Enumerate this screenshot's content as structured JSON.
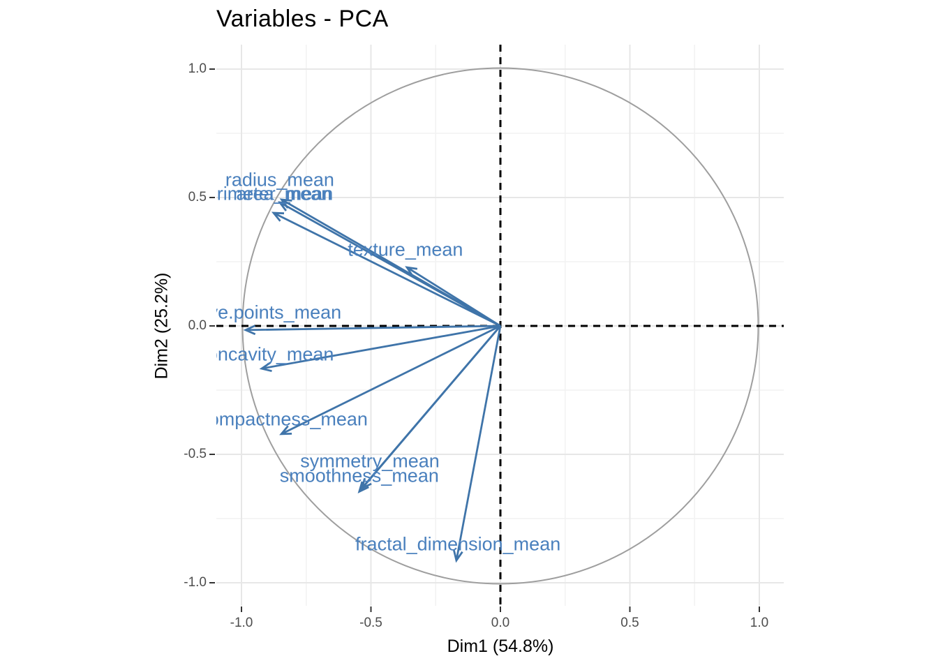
{
  "title": "Variables - PCA",
  "axes": {
    "x_label": "Dim1 (54.8%)",
    "y_label": "Dim2 (25.2%)",
    "x_tick_labels": [
      "-1.0",
      "-0.5",
      "0.0",
      "0.5",
      "1.0"
    ],
    "y_tick_labels": [
      "-1.0",
      "-0.5",
      "0.0",
      "0.5",
      "1.0"
    ]
  },
  "colors": {
    "variable_arrow": "#3f74a9",
    "variable_label": "#4a80bd",
    "unit_circle": "#9e9e9e",
    "axis_dashed": "#000000",
    "grid_major": "#e7e7e7",
    "grid_minor": "#f2f2f2",
    "tick_mark": "#333333",
    "tick_text": "#4d4d4d",
    "title_text": "#000000"
  },
  "chart_data": {
    "type": "scatter",
    "subtype": "pca-variable-correlation-circle",
    "title": "Variables - PCA",
    "xlabel": "Dim1 (54.8%)",
    "ylabel": "Dim2 (25.2%)",
    "xlim": [
      -1.1,
      1.1
    ],
    "ylim": [
      -1.1,
      1.1
    ],
    "x_ticks": [
      -1.0,
      -0.5,
      0.0,
      0.5,
      1.0
    ],
    "y_ticks": [
      -1.0,
      -0.5,
      0.0,
      0.5,
      1.0
    ],
    "minor_ticks": [
      -0.75,
      -0.25,
      0.25,
      0.75
    ],
    "grid": "major+minor",
    "unit_circle": true,
    "dashed_zero_axes": true,
    "legend_position": "none",
    "variables": [
      {
        "name": "perimeter_mean",
        "x": -0.852,
        "y": 0.481,
        "label_x": -0.911,
        "label_y": 0.514
      },
      {
        "name": "area_mean",
        "x": -0.876,
        "y": 0.44,
        "label_x": -0.836,
        "label_y": 0.514
      },
      {
        "name": "radius_mean",
        "x": -0.845,
        "y": 0.492,
        "label_x": -0.852,
        "label_y": 0.568
      },
      {
        "name": "texture_mean",
        "x": -0.361,
        "y": 0.228,
        "label_x": -0.367,
        "label_y": 0.296
      },
      {
        "name": "concave.points_mean",
        "x": -0.984,
        "y": -0.016,
        "label_x": -0.968,
        "label_y": 0.052
      },
      {
        "name": "concavity_mean",
        "x": -0.922,
        "y": -0.166,
        "label_x": -0.906,
        "label_y": -0.111
      },
      {
        "name": "compactness_mean",
        "x": -0.846,
        "y": -0.421,
        "label_x": -0.838,
        "label_y": -0.364
      },
      {
        "name": "symmetry_mean",
        "x": -0.535,
        "y": -0.632,
        "label_x": -0.504,
        "label_y": -0.527
      },
      {
        "name": "smoothness_mean",
        "x": -0.545,
        "y": -0.645,
        "label_x": -0.545,
        "label_y": -0.584
      },
      {
        "name": "fractal_dimension_mean",
        "x": -0.17,
        "y": -0.913,
        "label_x": -0.164,
        "label_y": -0.851
      }
    ]
  }
}
